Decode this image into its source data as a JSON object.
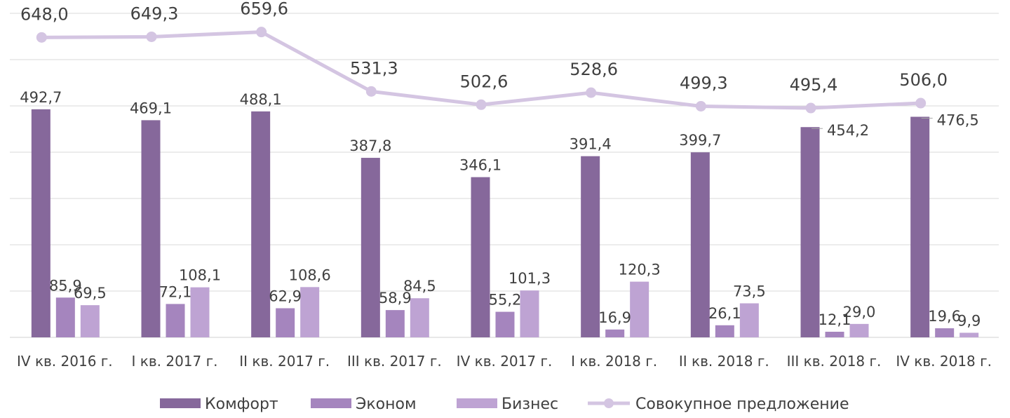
{
  "chart_data": {
    "type": "bar",
    "categories": [
      "IV кв. 2016 г.",
      "I кв. 2017 г.",
      "II кв. 2017 г.",
      "III кв. 2017 г.",
      "IV кв. 2017 г.",
      "I кв. 2018 г.",
      "II кв. 2018 г.",
      "III кв. 2018 г.",
      "IV кв. 2018 г."
    ],
    "series": [
      {
        "name": "Комфорт",
        "type": "bar",
        "color": "#86689b",
        "values": [
          492.7,
          469.1,
          488.1,
          387.8,
          346.1,
          391.4,
          399.7,
          454.2,
          476.5
        ],
        "labels": [
          "492,7",
          "469,1",
          "488,1",
          "387,8",
          "346,1",
          "391,4",
          "399,7",
          "454,2",
          "476,5"
        ]
      },
      {
        "name": "Эконом",
        "type": "bar",
        "color": "#a585be",
        "values": [
          85.9,
          72.1,
          62.9,
          58.9,
          55.2,
          16.9,
          26.1,
          12.1,
          19.6
        ],
        "labels": [
          "85,9",
          "72,1",
          "62,9",
          "58,9",
          "55,2",
          "16,9",
          "26,1",
          "12,1",
          "19,6"
        ]
      },
      {
        "name": "Бизнес",
        "type": "bar",
        "color": "#bea3d3",
        "values": [
          69.5,
          108.1,
          108.6,
          84.5,
          101.3,
          120.3,
          73.5,
          29.0,
          9.9
        ],
        "labels": [
          "69,5",
          "108,1",
          "108,6",
          "84,5",
          "101,3",
          "120,3",
          "73,5",
          "29,0",
          "9,9"
        ]
      },
      {
        "name": "Совокупное предложение",
        "type": "line",
        "color": "#d4c5e2",
        "values": [
          648.0,
          649.3,
          659.6,
          531.3,
          502.6,
          528.6,
          499.3,
          495.4,
          506.0
        ],
        "labels": [
          "648,0",
          "649,3",
          "659,6",
          "531,3",
          "502,6",
          "528,6",
          "499,3",
          "495,4",
          "506,0"
        ]
      }
    ],
    "ylim": [
      0,
      700
    ],
    "grid": true,
    "legend_position": "bottom"
  }
}
